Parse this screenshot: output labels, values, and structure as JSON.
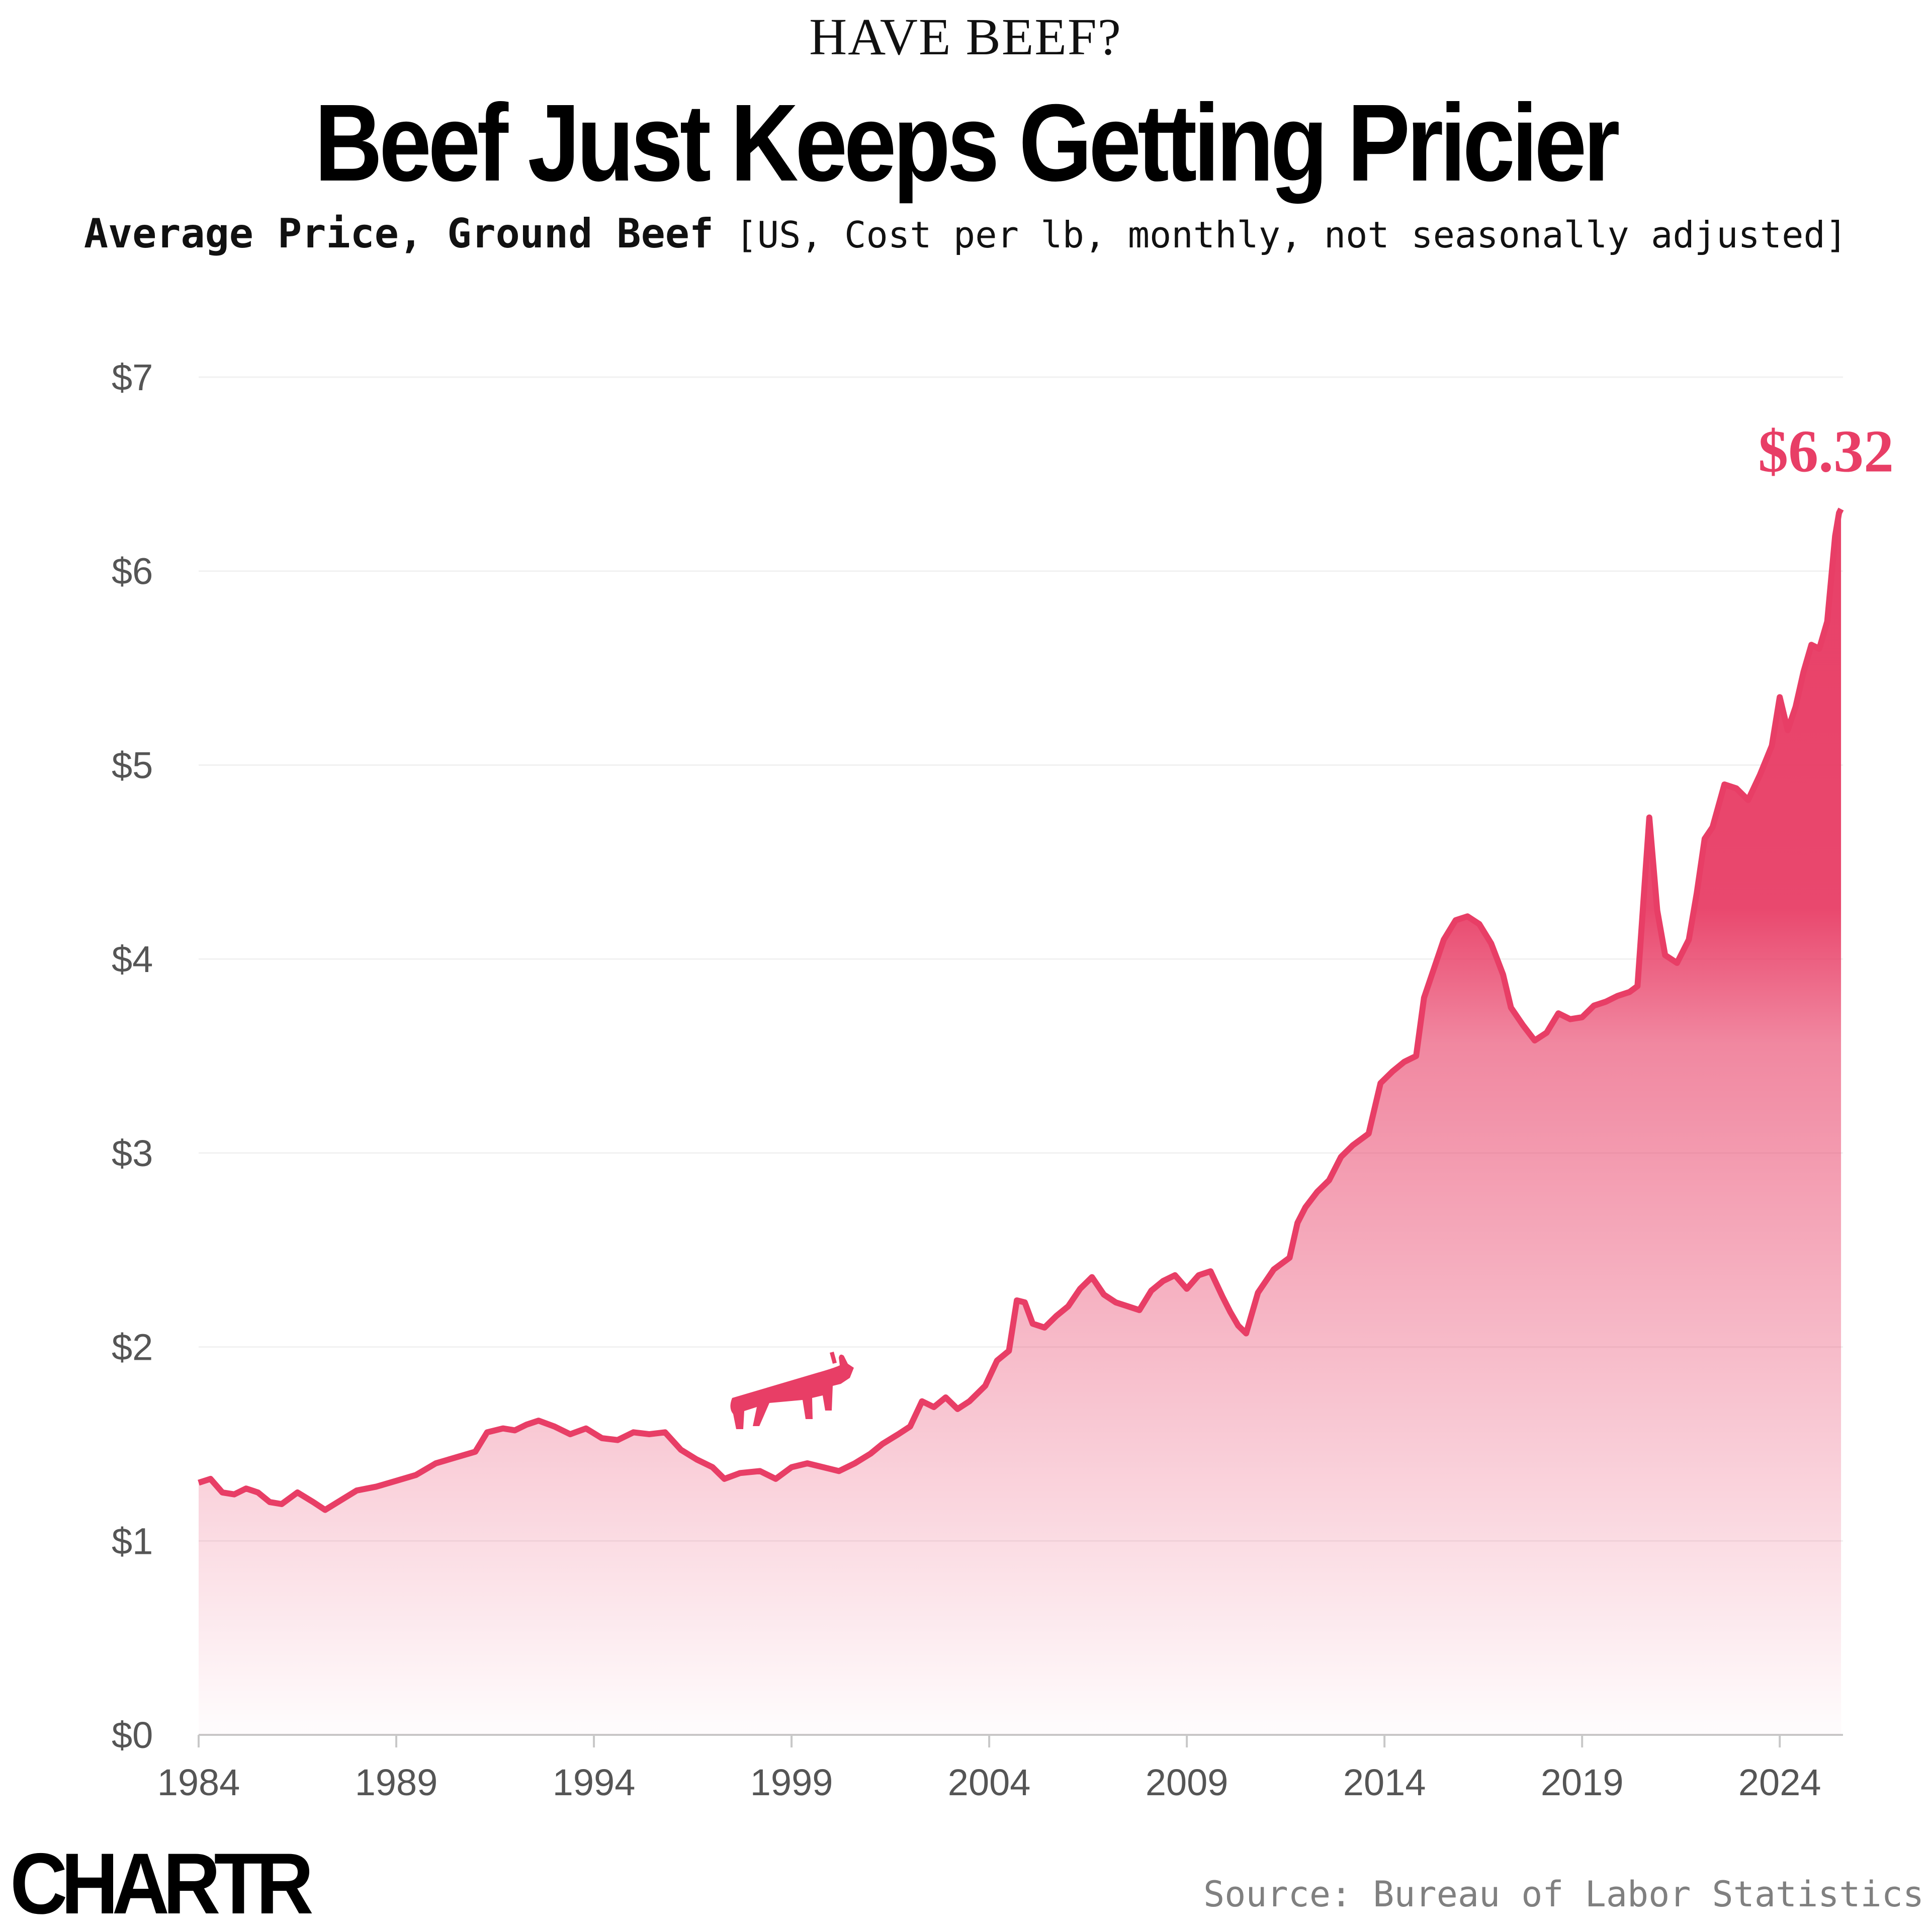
{
  "kicker": "HAVE BEEF?",
  "title": "Beef Just Keeps Getting Pricier",
  "subtitle_bold": "Average Price, Ground Beef",
  "subtitle_rest": "[US, Cost per lb, monthly, not seasonally adjusted]",
  "source": "Source: Bureau of Labor Statistics",
  "logo": "CHARTR",
  "chart_data": {
    "type": "area",
    "title": "Beef Just Keeps Getting Pricier",
    "subtitle": "Average Price, Ground Beef [US, Cost per lb, monthly, not seasonally adjusted]",
    "xlabel": "",
    "ylabel": "",
    "xlim": [
      1984,
      2025.6
    ],
    "ylim": [
      0,
      7
    ],
    "x_ticks": [
      1984,
      1989,
      1994,
      1999,
      2004,
      2009,
      2014,
      2019,
      2024
    ],
    "x_tick_labels": [
      "1984",
      "1989",
      "1994",
      "1999",
      "2004",
      "2009",
      "2014",
      "2019",
      "2024"
    ],
    "y_ticks": [
      0,
      1,
      2,
      3,
      4,
      5,
      6,
      7
    ],
    "y_tick_labels": [
      "$0",
      "$1",
      "$2",
      "$3",
      "$4",
      "$5",
      "$6",
      "$7"
    ],
    "grid": "horizontal",
    "color": "#e83e66",
    "end_label": "$6.32",
    "series": [
      {
        "values": [
          [
            1984.0,
            1.3
          ],
          [
            1984.3,
            1.32
          ],
          [
            1984.6,
            1.25
          ],
          [
            1984.9,
            1.24
          ],
          [
            1985.2,
            1.27
          ],
          [
            1985.5,
            1.25
          ],
          [
            1985.8,
            1.2
          ],
          [
            1986.1,
            1.19
          ],
          [
            1986.5,
            1.25
          ],
          [
            1986.9,
            1.2
          ],
          [
            1987.2,
            1.16
          ],
          [
            1987.6,
            1.21
          ],
          [
            1988.0,
            1.26
          ],
          [
            1988.5,
            1.28
          ],
          [
            1989.0,
            1.31
          ],
          [
            1989.5,
            1.34
          ],
          [
            1990.0,
            1.4
          ],
          [
            1990.5,
            1.43
          ],
          [
            1991.0,
            1.46
          ],
          [
            1991.3,
            1.56
          ],
          [
            1991.7,
            1.58
          ],
          [
            1992.0,
            1.57
          ],
          [
            1992.3,
            1.6
          ],
          [
            1992.6,
            1.62
          ],
          [
            1993.0,
            1.59
          ],
          [
            1993.4,
            1.55
          ],
          [
            1993.8,
            1.58
          ],
          [
            1994.2,
            1.53
          ],
          [
            1994.6,
            1.52
          ],
          [
            1995.0,
            1.56
          ],
          [
            1995.4,
            1.55
          ],
          [
            1995.8,
            1.56
          ],
          [
            1996.2,
            1.47
          ],
          [
            1996.6,
            1.42
          ],
          [
            1997.0,
            1.38
          ],
          [
            1997.3,
            1.32
          ],
          [
            1997.7,
            1.35
          ],
          [
            1998.2,
            1.36
          ],
          [
            1998.6,
            1.32
          ],
          [
            1999.0,
            1.38
          ],
          [
            1999.4,
            1.4
          ],
          [
            1999.8,
            1.38
          ],
          [
            2000.2,
            1.36
          ],
          [
            2000.6,
            1.4
          ],
          [
            2001.0,
            1.45
          ],
          [
            2001.3,
            1.5
          ],
          [
            2001.7,
            1.55
          ],
          [
            2002.0,
            1.59
          ],
          [
            2002.3,
            1.72
          ],
          [
            2002.6,
            1.69
          ],
          [
            2002.9,
            1.74
          ],
          [
            2003.2,
            1.68
          ],
          [
            2003.5,
            1.72
          ],
          [
            2003.9,
            1.8
          ],
          [
            2004.2,
            1.93
          ],
          [
            2004.5,
            1.98
          ],
          [
            2004.7,
            2.24
          ],
          [
            2004.9,
            2.23
          ],
          [
            2005.1,
            2.12
          ],
          [
            2005.4,
            2.1
          ],
          [
            2005.7,
            2.16
          ],
          [
            2006.0,
            2.21
          ],
          [
            2006.3,
            2.3
          ],
          [
            2006.6,
            2.36
          ],
          [
            2006.9,
            2.27
          ],
          [
            2007.2,
            2.23
          ],
          [
            2007.5,
            2.21
          ],
          [
            2007.8,
            2.19
          ],
          [
            2008.1,
            2.29
          ],
          [
            2008.4,
            2.34
          ],
          [
            2008.7,
            2.37
          ],
          [
            2009.0,
            2.3
          ],
          [
            2009.3,
            2.37
          ],
          [
            2009.6,
            2.39
          ],
          [
            2009.9,
            2.26
          ],
          [
            2010.1,
            2.18
          ],
          [
            2010.3,
            2.11
          ],
          [
            2010.5,
            2.07
          ],
          [
            2010.8,
            2.28
          ],
          [
            2011.2,
            2.4
          ],
          [
            2011.6,
            2.46
          ],
          [
            2011.8,
            2.64
          ],
          [
            2012.0,
            2.72
          ],
          [
            2012.3,
            2.8
          ],
          [
            2012.6,
            2.86
          ],
          [
            2012.9,
            2.98
          ],
          [
            2013.2,
            3.04
          ],
          [
            2013.6,
            3.1
          ],
          [
            2013.9,
            3.36
          ],
          [
            2014.2,
            3.42
          ],
          [
            2014.5,
            3.47
          ],
          [
            2014.8,
            3.5
          ],
          [
            2015.0,
            3.8
          ],
          [
            2015.2,
            3.92
          ],
          [
            2015.5,
            4.1
          ],
          [
            2015.8,
            4.2
          ],
          [
            2016.1,
            4.22
          ],
          [
            2016.4,
            4.18
          ],
          [
            2016.7,
            4.08
          ],
          [
            2017.0,
            3.92
          ],
          [
            2017.2,
            3.75
          ],
          [
            2017.5,
            3.66
          ],
          [
            2017.8,
            3.58
          ],
          [
            2018.1,
            3.62
          ],
          [
            2018.4,
            3.72
          ],
          [
            2018.7,
            3.69
          ],
          [
            2019.0,
            3.7
          ],
          [
            2019.3,
            3.76
          ],
          [
            2019.6,
            3.78
          ],
          [
            2019.9,
            3.81
          ],
          [
            2020.2,
            3.83
          ],
          [
            2020.4,
            3.86
          ],
          [
            2020.7,
            4.73
          ],
          [
            2020.9,
            4.25
          ],
          [
            2021.1,
            4.02
          ],
          [
            2021.4,
            3.98
          ],
          [
            2021.7,
            4.1
          ],
          [
            2021.9,
            4.34
          ],
          [
            2022.1,
            4.62
          ],
          [
            2022.3,
            4.68
          ],
          [
            2022.6,
            4.9
          ],
          [
            2022.9,
            4.88
          ],
          [
            2023.2,
            4.82
          ],
          [
            2023.5,
            4.95
          ],
          [
            2023.8,
            5.1
          ],
          [
            2024.0,
            5.35
          ],
          [
            2024.2,
            5.18
          ],
          [
            2024.4,
            5.3
          ],
          [
            2024.6,
            5.48
          ],
          [
            2024.8,
            5.62
          ],
          [
            2025.0,
            5.6
          ],
          [
            2025.2,
            5.74
          ],
          [
            2025.4,
            6.18
          ],
          [
            2025.5,
            6.3
          ],
          [
            2025.55,
            6.32
          ]
        ]
      }
    ]
  }
}
